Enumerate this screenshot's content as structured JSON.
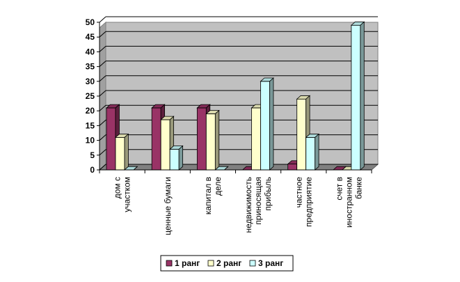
{
  "chart_data": {
    "type": "bar",
    "title": "",
    "xlabel": "",
    "ylabel": "",
    "ylim": [
      0,
      50
    ],
    "yticks": [
      0,
      5,
      10,
      15,
      20,
      25,
      30,
      35,
      40,
      45,
      50
    ],
    "grid": true,
    "legend_position": "bottom",
    "categories": [
      [
        "дом с",
        "участком"
      ],
      [
        "ценные бумаги"
      ],
      [
        "капитал в",
        "деле"
      ],
      [
        "недвижимость",
        "приносящая",
        "прибыль"
      ],
      [
        "частное",
        "предприятие"
      ],
      [
        "счет в",
        "иностранном",
        "банке"
      ]
    ],
    "series": [
      {
        "name": "1 ранг",
        "color": "#993366",
        "values": [
          21,
          21,
          21,
          0,
          2,
          0
        ]
      },
      {
        "name": "2 ранг",
        "color": "#FFFFCC",
        "values": [
          11,
          17,
          19,
          21,
          24,
          0
        ]
      },
      {
        "name": "3 ранг",
        "color": "#CCFFFF",
        "values": [
          0,
          7,
          0,
          30,
          11,
          49
        ]
      }
    ],
    "plot_background": "#C0C0C0"
  }
}
